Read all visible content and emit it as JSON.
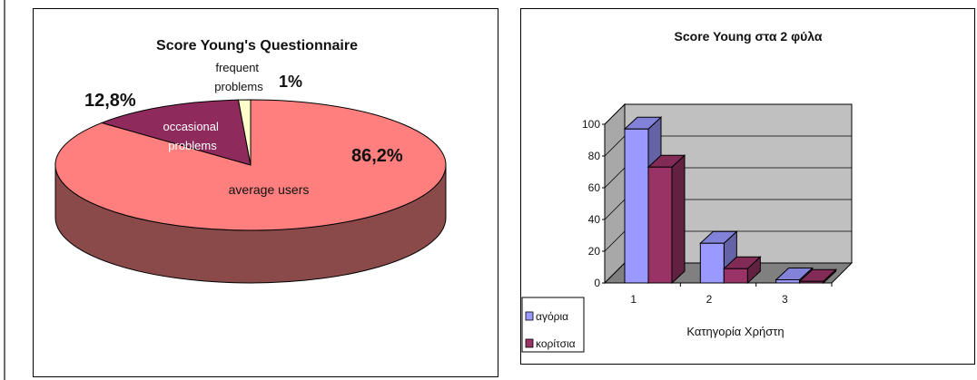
{
  "chart_data": [
    {
      "type": "pie",
      "title": "Score Young's Questionnaire",
      "slices": [
        {
          "label": "average users",
          "value": 86.2,
          "percent_label": "86,2%",
          "color": "#ff7f7f"
        },
        {
          "label": "occasional problems",
          "value": 12.8,
          "percent_label": "12,8%",
          "color": "#8e2a5c"
        },
        {
          "label": "frequent problems",
          "value": 1,
          "percent_label": "1%",
          "color": "#ffffcc"
        }
      ]
    },
    {
      "type": "bar",
      "title": "Score Young στα 2 φύλα",
      "xlabel": "Κατηγορία Χρήστη",
      "ylabel": "",
      "ylim": [
        0,
        100
      ],
      "yticks": [
        "0",
        "20",
        "40",
        "60",
        "80",
        "100"
      ],
      "categories": [
        "1",
        "2",
        "3"
      ],
      "series": [
        {
          "name": "αγόρια",
          "values": [
            97,
            25,
            2
          ],
          "color": "#9999ff"
        },
        {
          "name": "κορίτσια",
          "values": [
            73,
            9,
            1
          ],
          "color": "#993366"
        }
      ],
      "legend_position": "bottom-left"
    }
  ]
}
